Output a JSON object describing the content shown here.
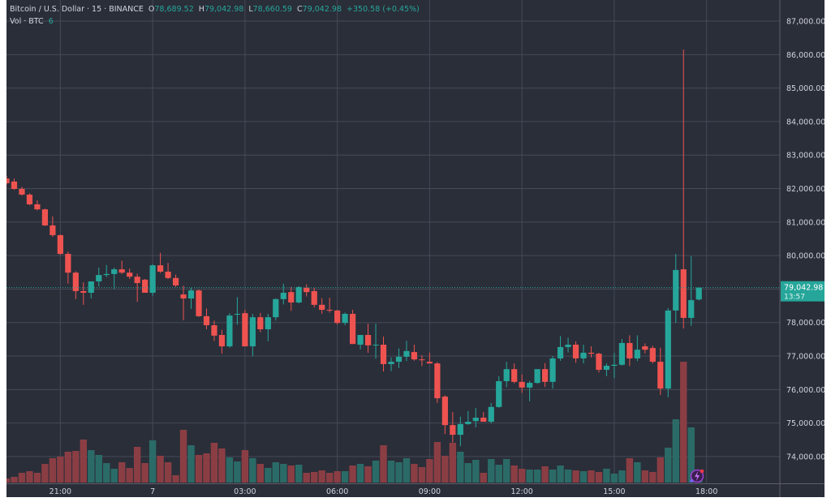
{
  "header": {
    "symbol": "Bitcoin / U.S. Dollar · 15 · BINANCE",
    "o_label": "O",
    "o_value": "78,689.52",
    "h_label": "H",
    "h_value": "79,042.98",
    "l_label": "L",
    "l_value": "78,660.59",
    "c_label": "C",
    "c_value": "79,042.98",
    "change": "+350.58 (+0.45%)",
    "vol_label": "Vol · BTC",
    "vol_value": "6"
  },
  "last_price": {
    "value": "79,042.98",
    "countdown": "13:57",
    "price": 79042.98
  },
  "colors": {
    "background": "#2a2e39",
    "grid": "#454a57",
    "up": "#26a69a",
    "down": "#ef5350",
    "volume_up": "#2b6b67",
    "volume_down": "#8a3e44",
    "text": "#d1d4dc"
  },
  "icons": {
    "indicator_badge": "lightning-badge-icon"
  },
  "chart_data": {
    "type": "candlestick",
    "title": "Bitcoin / U.S. Dollar · 15 · BINANCE",
    "interval_minutes": 15,
    "ylim": [
      73200,
      87630
    ],
    "grid": true,
    "y_ticks": [
      74000,
      75000,
      76000,
      77000,
      78000,
      79000,
      80000,
      81000,
      82000,
      83000,
      84000,
      85000,
      86000,
      87000
    ],
    "y_tick_labels": [
      "74,000.00",
      "75,000.00",
      "76,000.00",
      "77,000.00",
      "78,000.00",
      "",
      "80,000.00",
      "81,000.00",
      "82,000.00",
      "83,000.00",
      "84,000.00",
      "85,000.00",
      "86,000.00",
      "87,000.00"
    ],
    "x_ticks": [
      {
        "label": "21:00",
        "time": "21:00"
      },
      {
        "label": "7",
        "time": "00:00"
      },
      {
        "label": "03:00",
        "time": "03:00"
      },
      {
        "label": "06:00",
        "time": "06:00"
      },
      {
        "label": "09:00",
        "time": "09:00"
      },
      {
        "label": "12:00",
        "time": "12:00"
      },
      {
        "label": "15:00",
        "time": "15:00"
      },
      {
        "label": "18:00",
        "time": "18:00"
      }
    ],
    "columns": [
      "time",
      "open",
      "high",
      "low",
      "close",
      "volume_relative"
    ],
    "candles": [
      [
        "19:15",
        82300,
        82380,
        82120,
        82160,
        5
      ],
      [
        "19:30",
        82210,
        82300,
        81960,
        81990,
        7
      ],
      [
        "19:45",
        81990,
        82050,
        81790,
        81820,
        12
      ],
      [
        "20:00",
        81820,
        81860,
        81500,
        81530,
        14
      ],
      [
        "20:15",
        81530,
        81650,
        81350,
        81380,
        12
      ],
      [
        "20:30",
        81380,
        81400,
        80880,
        80900,
        23
      ],
      [
        "20:45",
        80900,
        81170,
        80560,
        80610,
        30
      ],
      [
        "21:00",
        80610,
        80630,
        80020,
        80050,
        32
      ],
      [
        "21:15",
        80050,
        80120,
        79160,
        79490,
        38
      ],
      [
        "21:30",
        79490,
        79530,
        78700,
        78940,
        39
      ],
      [
        "21:45",
        78940,
        79200,
        78530,
        78890,
        53
      ],
      [
        "22:00",
        78890,
        79230,
        78720,
        79230,
        40
      ],
      [
        "22:15",
        79230,
        79640,
        79080,
        79420,
        34
      ],
      [
        "22:30",
        79420,
        79720,
        79360,
        79450,
        24
      ],
      [
        "22:45",
        79450,
        79640,
        79000,
        79590,
        17
      ],
      [
        "23:00",
        79590,
        79850,
        79450,
        79490,
        25
      ],
      [
        "23:15",
        79490,
        79610,
        79300,
        79370,
        18
      ],
      [
        "23:30",
        79370,
        79460,
        78620,
        79180,
        44
      ],
      [
        "23:45",
        79280,
        79300,
        78900,
        78890,
        24
      ],
      [
        "00:00",
        78890,
        79740,
        78800,
        79710,
        52
      ],
      [
        "00:15",
        79710,
        80080,
        79480,
        79520,
        33
      ],
      [
        "00:30",
        79520,
        79780,
        79300,
        79330,
        25
      ],
      [
        "00:45",
        79330,
        79430,
        79060,
        79110,
        9
      ],
      [
        "01:00",
        78840,
        79100,
        78070,
        78720,
        65
      ],
      [
        "01:15",
        78720,
        79040,
        78410,
        78960,
        46
      ],
      [
        "01:30",
        78960,
        78990,
        78170,
        78190,
        34
      ],
      [
        "01:45",
        78190,
        78420,
        77800,
        77920,
        36
      ],
      [
        "02:00",
        77920,
        78060,
        77450,
        77610,
        49
      ],
      [
        "02:15",
        77630,
        77780,
        77070,
        77290,
        42
      ],
      [
        "02:30",
        77290,
        78280,
        77250,
        78210,
        31
      ],
      [
        "02:45",
        78240,
        78760,
        77940,
        78260,
        26
      ],
      [
        "03:00",
        78280,
        78380,
        77290,
        77290,
        40
      ],
      [
        "03:15",
        77290,
        78260,
        76990,
        78160,
        30
      ],
      [
        "03:30",
        78160,
        78290,
        77710,
        77800,
        23
      ],
      [
        "03:45",
        77800,
        78260,
        77440,
        78160,
        18
      ],
      [
        "04:00",
        78160,
        78720,
        78060,
        78700,
        25
      ],
      [
        "04:15",
        78700,
        79160,
        78540,
        78890,
        23
      ],
      [
        "04:30",
        78910,
        79060,
        78350,
        78600,
        21
      ],
      [
        "04:45",
        78600,
        79090,
        78570,
        79060,
        22
      ],
      [
        "05:00",
        79040,
        79140,
        78780,
        78910,
        12
      ],
      [
        "05:15",
        78940,
        79040,
        78450,
        78530,
        13
      ],
      [
        "05:30",
        78530,
        78730,
        78260,
        78380,
        15
      ],
      [
        "05:45",
        78380,
        78740,
        78300,
        78360,
        12
      ],
      [
        "06:00",
        78360,
        78380,
        77940,
        77990,
        14
      ],
      [
        "06:15",
        77990,
        78300,
        77920,
        78260,
        14
      ],
      [
        "06:30",
        78260,
        78380,
        77360,
        77360,
        21
      ],
      [
        "06:45",
        77340,
        77630,
        77200,
        77630,
        23
      ],
      [
        "07:00",
        77630,
        77970,
        77100,
        77320,
        20
      ],
      [
        "07:15",
        77320,
        77970,
        76920,
        77340,
        27
      ],
      [
        "07:30",
        77340,
        77580,
        76540,
        76760,
        46
      ],
      [
        "07:45",
        76760,
        76960,
        76550,
        76830,
        27
      ],
      [
        "08:00",
        76830,
        77230,
        76640,
        76980,
        25
      ],
      [
        "08:15",
        76980,
        77460,
        76850,
        77150,
        30
      ],
      [
        "08:30",
        77120,
        77340,
        76860,
        76900,
        23
      ],
      [
        "08:45",
        76900,
        77030,
        76700,
        76880,
        19
      ],
      [
        "09:00",
        76830,
        77100,
        76780,
        76780,
        29
      ],
      [
        "09:15",
        76780,
        76820,
        75600,
        75740,
        50
      ],
      [
        "09:30",
        75790,
        75830,
        74670,
        74940,
        33
      ],
      [
        "09:45",
        74940,
        75330,
        74420,
        74650,
        49
      ],
      [
        "10:00",
        74650,
        75190,
        74310,
        74970,
        38
      ],
      [
        "10:15",
        74970,
        75360,
        74950,
        75040,
        24
      ],
      [
        "10:30",
        75060,
        75450,
        74870,
        75160,
        28
      ],
      [
        "10:45",
        75160,
        75330,
        75040,
        75040,
        12
      ],
      [
        "11:00",
        75040,
        75600,
        74990,
        75480,
        29
      ],
      [
        "11:15",
        75480,
        76400,
        75460,
        76250,
        22
      ],
      [
        "11:30",
        76250,
        76830,
        76070,
        76610,
        29
      ],
      [
        "11:45",
        76610,
        76780,
        76190,
        76230,
        21
      ],
      [
        "12:00",
        76230,
        76450,
        75900,
        76060,
        17
      ],
      [
        "12:15",
        76060,
        76260,
        75650,
        76200,
        16
      ],
      [
        "12:30",
        76200,
        76590,
        76170,
        76610,
        16
      ],
      [
        "12:45",
        76610,
        76790,
        76080,
        76230,
        20
      ],
      [
        "13:00",
        76230,
        77000,
        76030,
        76930,
        16
      ],
      [
        "13:15",
        76930,
        77600,
        76860,
        77270,
        21
      ],
      [
        "13:30",
        77270,
        77550,
        77110,
        77340,
        16
      ],
      [
        "13:45",
        77340,
        77440,
        76800,
        76930,
        15
      ],
      [
        "14:00",
        76930,
        77340,
        76780,
        77100,
        14
      ],
      [
        "14:15",
        77100,
        77290,
        76960,
        77070,
        15
      ],
      [
        "14:30",
        77070,
        77100,
        76510,
        76590,
        13
      ],
      [
        "14:45",
        76590,
        76780,
        76400,
        76710,
        17
      ],
      [
        "15:00",
        76710,
        77100,
        76340,
        76740,
        11
      ],
      [
        "15:15",
        76740,
        77510,
        76710,
        77390,
        15
      ],
      [
        "15:30",
        77390,
        77620,
        76700,
        76930,
        30
      ],
      [
        "15:45",
        76930,
        77620,
        76850,
        77190,
        25
      ],
      [
        "16:00",
        77290,
        77380,
        77080,
        77190,
        15
      ],
      [
        "16:15",
        77240,
        77310,
        76780,
        76830,
        13
      ],
      [
        "16:30",
        76830,
        77250,
        75840,
        76030,
        31
      ],
      [
        "16:45",
        76030,
        78430,
        75770,
        78360,
        43
      ],
      [
        "17:00",
        78360,
        80050,
        77990,
        79570,
        78
      ],
      [
        "17:15",
        79590,
        86150,
        77820,
        78140,
        149
      ],
      [
        "17:30",
        78140,
        79980,
        77900,
        78670,
        68
      ],
      [
        "17:45",
        78689.52,
        79042.98,
        78660.59,
        79042.98,
        3
      ]
    ]
  }
}
